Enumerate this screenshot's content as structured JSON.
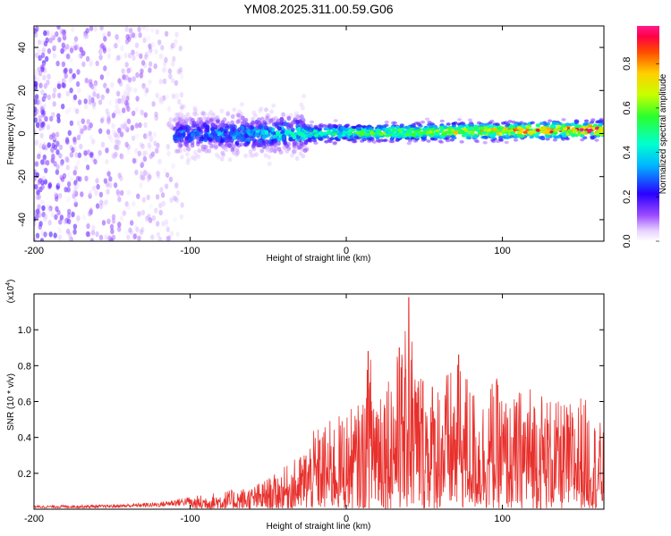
{
  "title": "YM08.2025.311.00.59.G06",
  "chart_data": [
    {
      "type": "heatmap",
      "title": "YM08.2025.311.00.59.G06",
      "xlabel": "Height of straight line (km)",
      "ylabel": "Frequency (Hz)",
      "xlim": [
        -200,
        165
      ],
      "ylim": [
        -50,
        50
      ],
      "xticks": [
        -200,
        -100,
        0,
        100
      ],
      "xtick_labels": [
        "-200",
        "-100",
        "0",
        "100"
      ],
      "yticks": [
        -40,
        -20,
        0,
        20,
        40
      ],
      "ytick_labels": [
        "-40",
        "-20",
        "0",
        "20",
        "40"
      ],
      "colorbar": {
        "label": "Normalized spectral amplitude",
        "range": [
          0,
          0.97
        ],
        "ticks": [
          0.0,
          0.2,
          0.4,
          0.6,
          0.8
        ],
        "tick_labels": [
          "0.0",
          "0.2",
          "0.4",
          "0.6",
          "0.8"
        ],
        "colormap": "rainbow (white-violet-blue-cyan-green-yellow-red-pink)"
      },
      "features": [
        {
          "x_range": [
            -200,
            -110
          ],
          "freq_spread": 50,
          "peak_amp": 0.2,
          "description": "noise speckle"
        },
        {
          "x_range": [
            -110,
            -25
          ],
          "freq_spread": 10,
          "peak_amp": 0.45,
          "description": "broadening signal"
        },
        {
          "x_range": [
            -25,
            165
          ],
          "freq_spread": 3,
          "peak_amp": 0.97,
          "description": "narrow band near 0 Hz, rising slightly with height"
        }
      ]
    },
    {
      "type": "line",
      "xlabel": "Height of straight line (km)",
      "ylabel": "SNR (10 * v/v)",
      "y_scale_label": "(x10",
      "y_scale_exponent": "4",
      "xlim": [
        -200,
        165
      ],
      "ylim": [
        0,
        1.2
      ],
      "xticks": [
        -200,
        -100,
        0,
        100
      ],
      "xtick_labels": [
        "-200",
        "-100",
        "0",
        "100"
      ],
      "yticks": [
        0.2,
        0.4,
        0.6,
        0.8,
        1.0
      ],
      "ytick_labels": [
        "0.2",
        "0.4",
        "0.6",
        "0.8",
        "1.0"
      ],
      "color": "#e8302c",
      "envelope": {
        "x": [
          -200,
          -150,
          -120,
          -100,
          -80,
          -60,
          -45,
          -30,
          -20,
          -10,
          0,
          10,
          15,
          25,
          35,
          40,
          45,
          55,
          65,
          75,
          85,
          95,
          105,
          115,
          125,
          135,
          145,
          150,
          155,
          160,
          165
        ],
        "y": [
          0.02,
          0.025,
          0.04,
          0.07,
          0.1,
          0.13,
          0.2,
          0.3,
          0.45,
          0.5,
          0.55,
          0.6,
          0.88,
          0.8,
          0.9,
          1.18,
          0.85,
          0.75,
          0.78,
          0.82,
          0.62,
          0.75,
          0.6,
          0.72,
          0.68,
          0.6,
          0.6,
          0.65,
          0.6,
          0.5,
          0.48
        ]
      },
      "peaks": [
        {
          "x": 40,
          "y": 1.18
        },
        {
          "x": 14,
          "y": 0.88
        },
        {
          "x": 34,
          "y": 0.9
        },
        {
          "x": 72,
          "y": 0.86
        },
        {
          "x": 38,
          "y": 0.78
        }
      ]
    }
  ]
}
